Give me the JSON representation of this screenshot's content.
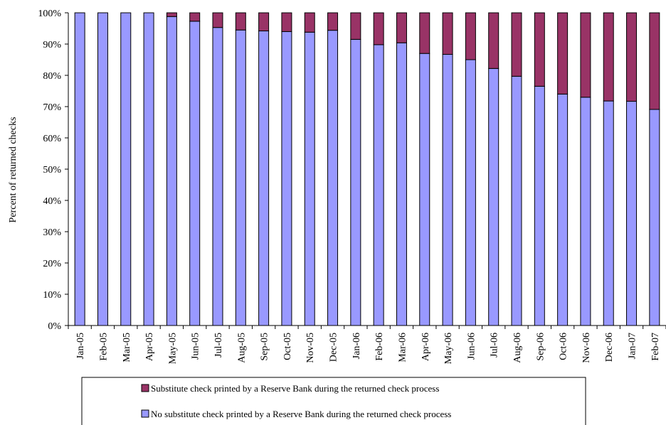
{
  "chart_data": {
    "type": "bar",
    "stacked": true,
    "percent_stacked": true,
    "xlabel": "",
    "ylabel": "Percent of returned checks",
    "ylim": [
      0,
      100
    ],
    "yticks": [
      "0%",
      "10%",
      "20%",
      "30%",
      "40%",
      "50%",
      "60%",
      "70%",
      "80%",
      "90%",
      "100%"
    ],
    "grid": false,
    "legend_position": "bottom",
    "categories": [
      "Jan-05",
      "Feb-05",
      "Mar-05",
      "Apr-05",
      "May-05",
      "Jun-05",
      "Jul-05",
      "Aug-05",
      "Sep-05",
      "Oct-05",
      "Nov-05",
      "Dec-05",
      "Jan-06",
      "Feb-06",
      "Mar-06",
      "Apr-06",
      "May-06",
      "Jun-06",
      "Jul-06",
      "Aug-06",
      "Sep-06",
      "Oct-06",
      "Nov-06",
      "Dec-06",
      "Jan-07",
      "Feb-07"
    ],
    "series": [
      {
        "name": "No substitute check printed by a Reserve Bank during the returned check process",
        "color": "#9999ff",
        "values": [
          100,
          100,
          100,
          100,
          98.8,
          97.3,
          95.3,
          94.5,
          94.2,
          94.0,
          93.8,
          94.4,
          91.5,
          89.8,
          90.4,
          87.0,
          86.7,
          85.0,
          82.2,
          79.7,
          76.5,
          74.0,
          73.0,
          71.8,
          71.7,
          69.1
        ]
      },
      {
        "name": "Substitute check printed by a Reserve Bank during the returned check process",
        "color": "#993366",
        "values": [
          0,
          0,
          0,
          0,
          1.2,
          2.7,
          4.7,
          5.5,
          5.8,
          6.0,
          6.2,
          5.6,
          8.5,
          10.2,
          9.6,
          13.0,
          13.3,
          15.0,
          17.8,
          20.3,
          23.5,
          26.0,
          27.0,
          28.2,
          28.3,
          30.9
        ]
      }
    ]
  }
}
